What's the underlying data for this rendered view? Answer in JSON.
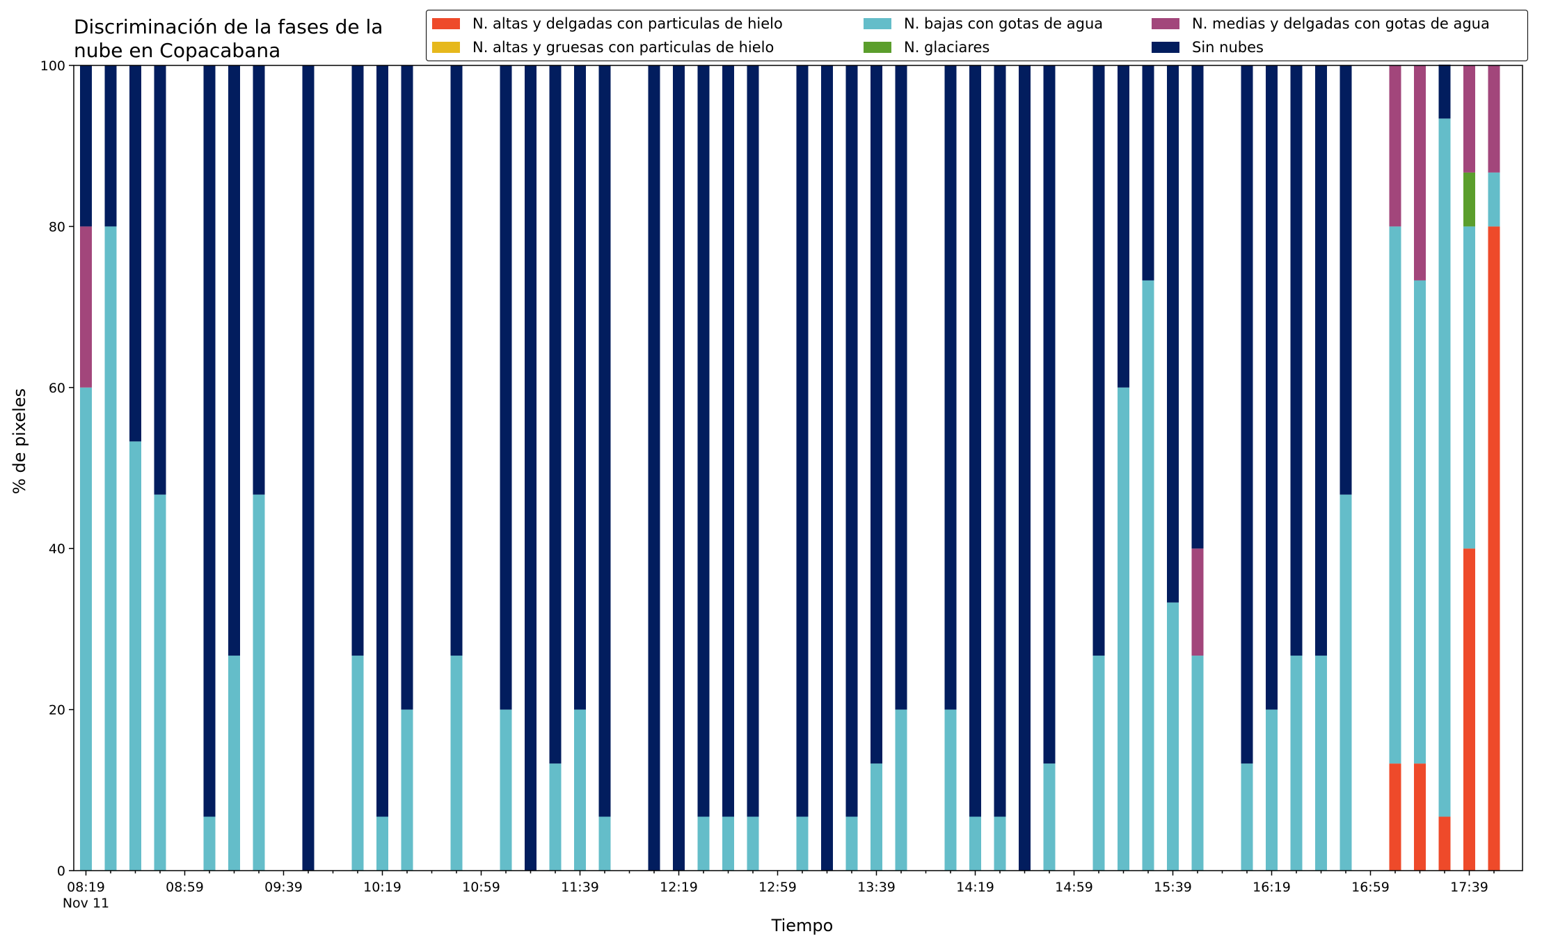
{
  "chart_data": {
    "type": "bar",
    "stacked": true,
    "title_line1": "Discriminación de la fases de la",
    "title_line2": "nube en Copacabana",
    "xlabel": "Tiempo",
    "ylabel": "% de pixeles",
    "ylim": [
      0,
      100
    ],
    "yticks": [
      0,
      20,
      40,
      60,
      80,
      100
    ],
    "x_tick_labels": [
      "08:19",
      "08:59",
      "09:39",
      "10:19",
      "10:59",
      "11:39",
      "12:19",
      "12:59",
      "13:39",
      "14:19",
      "14:59",
      "15:39",
      "16:19",
      "16:59",
      "17:39"
    ],
    "x_date_label": "Nov 11",
    "categories": [
      "08:19",
      "08:29",
      "08:39",
      "08:49",
      "08:59",
      "09:09",
      "09:19",
      "09:29",
      "09:39",
      "09:49",
      "09:59",
      "10:09",
      "10:19",
      "10:29",
      "10:39",
      "10:49",
      "10:59",
      "11:09",
      "11:19",
      "11:29",
      "11:39",
      "11:49",
      "11:59",
      "12:09",
      "12:19",
      "12:29",
      "12:39",
      "12:49",
      "12:59",
      "13:09",
      "13:19",
      "13:29",
      "13:39",
      "13:49",
      "13:59",
      "14:09",
      "14:19",
      "14:29",
      "14:39",
      "14:49",
      "14:59",
      "15:09",
      "15:19",
      "15:29",
      "15:39",
      "15:49",
      "15:59",
      "16:09",
      "16:19",
      "16:29",
      "16:39",
      "16:49",
      "16:59",
      "17:09",
      "17:19",
      "17:29",
      "17:39",
      "17:49"
    ],
    "series": [
      {
        "name": "N. altas y delgadas con particulas de hielo",
        "color": "#ee4a2a",
        "values": [
          0,
          0,
          0,
          0,
          0,
          0,
          0,
          0,
          0,
          0,
          0,
          0,
          0,
          0,
          0,
          0,
          0,
          0,
          0,
          0,
          0,
          0,
          0,
          0,
          0,
          0,
          0,
          0,
          0,
          0,
          0,
          0,
          0,
          0,
          0,
          0,
          0,
          0,
          0,
          0,
          0,
          0,
          0,
          0,
          0,
          0,
          0,
          0,
          0,
          0,
          0,
          0,
          0,
          13.3,
          13.3,
          6.7,
          40,
          80
        ]
      },
      {
        "name": "N. altas y gruesas con particulas de hielo",
        "color": "#e6b81c",
        "values": [
          0,
          0,
          0,
          0,
          0,
          0,
          0,
          0,
          0,
          0,
          0,
          0,
          0,
          0,
          0,
          0,
          0,
          0,
          0,
          0,
          0,
          0,
          0,
          0,
          0,
          0,
          0,
          0,
          0,
          0,
          0,
          0,
          0,
          0,
          0,
          0,
          0,
          0,
          0,
          0,
          0,
          0,
          0,
          0,
          0,
          0,
          0,
          0,
          0,
          0,
          0,
          0,
          0,
          0,
          0,
          0,
          0,
          0
        ]
      },
      {
        "name": "N. bajas con gotas de agua",
        "color": "#64bdc9",
        "values": [
          60,
          80,
          53.3,
          46.7,
          null,
          6.7,
          26.7,
          46.7,
          null,
          0,
          null,
          26.7,
          6.7,
          20,
          null,
          26.7,
          null,
          20,
          0,
          13.3,
          20,
          6.7,
          null,
          0,
          0,
          6.7,
          6.7,
          6.7,
          null,
          6.7,
          0,
          6.7,
          13.3,
          20,
          null,
          20,
          6.7,
          6.7,
          0,
          13.3,
          null,
          26.7,
          60,
          73.3,
          33.3,
          26.7,
          null,
          13.3,
          20,
          26.7,
          26.7,
          46.7,
          null,
          66.7,
          60,
          86.7,
          40,
          6.7
        ]
      },
      {
        "name": "N. glaciares",
        "color": "#5b9e2c",
        "values": [
          0,
          0,
          0,
          0,
          0,
          0,
          0,
          0,
          0,
          0,
          0,
          0,
          0,
          0,
          0,
          0,
          0,
          0,
          0,
          0,
          0,
          0,
          0,
          0,
          0,
          0,
          0,
          0,
          0,
          0,
          0,
          0,
          0,
          0,
          0,
          0,
          0,
          0,
          0,
          0,
          0,
          0,
          0,
          0,
          0,
          0,
          0,
          0,
          0,
          0,
          0,
          0,
          0,
          0,
          0,
          0,
          6.7,
          0
        ]
      },
      {
        "name": "N. medias y delgadas con gotas de agua",
        "color": "#a2467b",
        "values": [
          20,
          0,
          0,
          0,
          0,
          0,
          0,
          0,
          0,
          0,
          0,
          0,
          0,
          0,
          0,
          0,
          0,
          0,
          0,
          0,
          0,
          0,
          0,
          0,
          0,
          0,
          0,
          0,
          0,
          0,
          0,
          0,
          0,
          0,
          0,
          0,
          0,
          0,
          0,
          0,
          0,
          0,
          0,
          0,
          0,
          13.3,
          0,
          0,
          0,
          0,
          0,
          0,
          0,
          20,
          26.7,
          0,
          13.3,
          13.3
        ]
      },
      {
        "name": "Sin nubes",
        "color": "#021d5e",
        "values": [
          20,
          20,
          46.7,
          53.3,
          null,
          93.3,
          73.3,
          53.3,
          null,
          100,
          null,
          73.3,
          93.3,
          80,
          null,
          73.3,
          null,
          80,
          100,
          86.7,
          80,
          93.3,
          null,
          100,
          100,
          93.3,
          93.3,
          93.3,
          null,
          93.3,
          100,
          93.3,
          86.7,
          80,
          null,
          80,
          93.3,
          93.3,
          100,
          86.7,
          null,
          73.3,
          40,
          26.7,
          66.7,
          60,
          null,
          86.7,
          80,
          73.3,
          73.3,
          53.3,
          null,
          0,
          0,
          6.7,
          0,
          0
        ]
      }
    ],
    "legend_placement": "top-right",
    "grid": false
  }
}
